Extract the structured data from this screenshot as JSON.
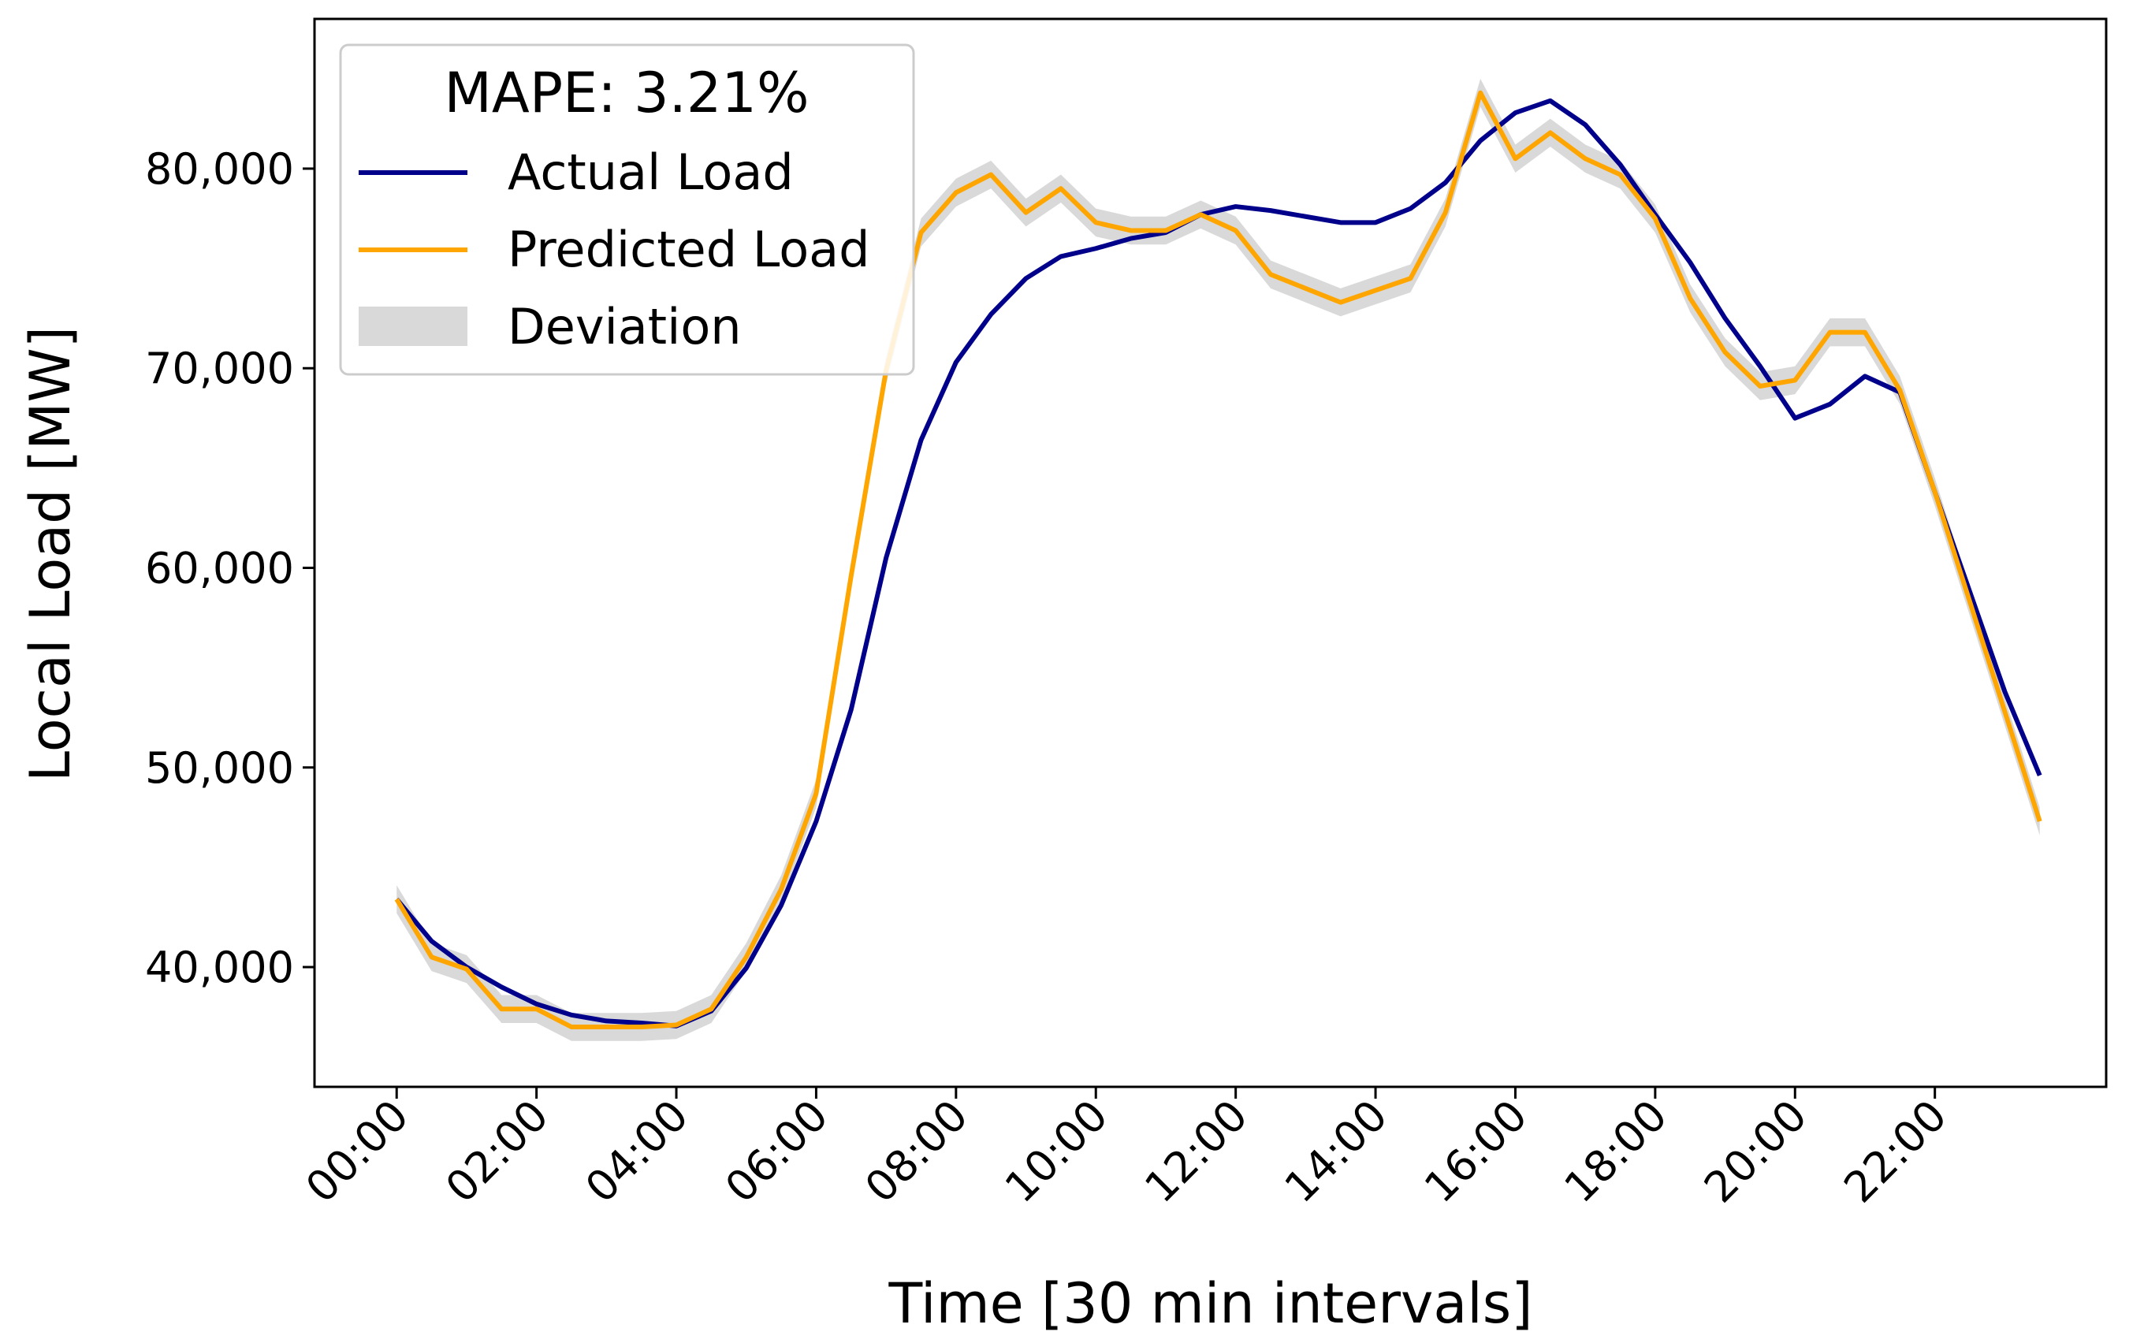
{
  "chart_data": {
    "type": "line",
    "title": "",
    "xlabel": "Time [30 min intervals]",
    "ylabel": "Local Load [MW]",
    "xlim": [
      -2.35,
      48.9
    ],
    "ylim": [
      34000,
      87500
    ],
    "grid": false,
    "x_tick_labels": [
      "00:00",
      "02:00",
      "04:00",
      "06:00",
      "08:00",
      "10:00",
      "12:00",
      "14:00",
      "16:00",
      "18:00",
      "20:00",
      "22:00"
    ],
    "x_tick_positions": [
      0,
      4,
      8,
      12,
      16,
      20,
      24,
      28,
      32,
      36,
      40,
      44
    ],
    "y_ticks": [
      40000,
      50000,
      60000,
      70000,
      80000
    ],
    "y_tick_labels": [
      "40,000",
      "50,000",
      "60,000",
      "70,000",
      "80,000"
    ],
    "legend": {
      "title": "MAPE: 3.21%",
      "placement": "top-left",
      "entries": [
        "Actual Load",
        "Predicted Load",
        "Deviation"
      ]
    },
    "series": [
      {
        "name": "Actual Load",
        "color": "#00008b",
        "values": [
          43400,
          41300,
          40000,
          39000,
          38150,
          37600,
          37300,
          37200,
          37050,
          37800,
          39950,
          43100,
          47300,
          52900,
          60500,
          66400,
          70300,
          72700,
          74500,
          75600,
          76000,
          76500,
          76800,
          77700,
          78100,
          77900,
          77600,
          77300,
          77300,
          78000,
          79300,
          81400,
          82800,
          83400,
          82200,
          80200,
          77700,
          75300,
          72500,
          70100,
          67500,
          68200,
          69600,
          68800,
          63800,
          58800,
          53800,
          49600
        ]
      },
      {
        "name": "Predicted Load",
        "color": "#ffa500",
        "values": [
          43400,
          40500,
          39900,
          37900,
          37900,
          37000,
          37000,
          37000,
          37100,
          37900,
          40500,
          43900,
          48700,
          59600,
          69900,
          76800,
          78800,
          79700,
          77800,
          79000,
          77300,
          76900,
          76900,
          77700,
          76900,
          74700,
          74000,
          73300,
          73900,
          74500,
          77800,
          83800,
          80500,
          81800,
          80500,
          79700,
          77500,
          73500,
          70800,
          69100,
          69400,
          71800,
          71800,
          68900,
          63800,
          58300,
          52800,
          47300
        ]
      }
    ],
    "deviation": {
      "name": "Deviation",
      "color": "#d9d9d9",
      "halfwidth": 700
    }
  }
}
